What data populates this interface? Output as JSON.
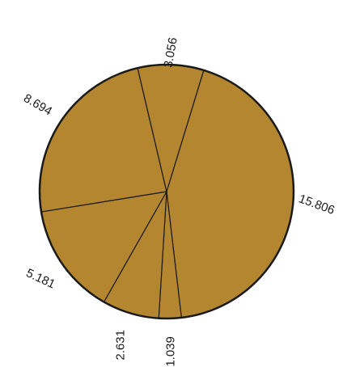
{
  "chart_data": {
    "type": "pie",
    "title": "",
    "start_angle_deg": 17,
    "direction": "clockwise",
    "slices": [
      {
        "label": "15.806",
        "value": 15.806
      },
      {
        "label": "1.039",
        "value": 1.039
      },
      {
        "label": "2.631",
        "value": 2.631
      },
      {
        "label": "5.181",
        "value": 5.181
      },
      {
        "label": "8.694",
        "value": 8.694
      },
      {
        "label": "3.056",
        "value": 3.056
      }
    ],
    "colors": {
      "fill": "#b3862f",
      "edge": "#1a1a1a",
      "background": "#ffffff"
    }
  }
}
